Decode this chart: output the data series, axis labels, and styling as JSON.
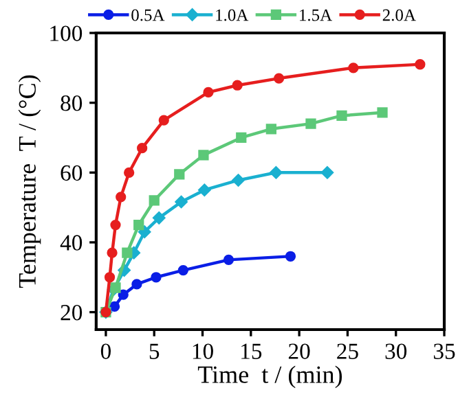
{
  "chart_data": {
    "type": "line",
    "xlabel": "Time  t / (min)",
    "ylabel": "Temperature  T / (°C)",
    "xlim": [
      -1,
      35
    ],
    "ylim": [
      15,
      100
    ],
    "xticks": [
      0,
      5,
      10,
      15,
      20,
      25,
      30,
      35
    ],
    "yticks": [
      20,
      40,
      60,
      80,
      100
    ],
    "grid": false,
    "legend": "top",
    "line_style": "solid",
    "series": [
      {
        "name": "0.5A",
        "color": "#0a1ee6",
        "marker": "circle",
        "x": [
          0,
          0.9,
          1.8,
          3.2,
          5.2,
          8,
          12.7,
          19.1
        ],
        "values": [
          20,
          21.6,
          25,
          28,
          30,
          32,
          35,
          36
        ]
      },
      {
        "name": "1.0A",
        "color": "#1ab0d0",
        "marker": "diamond",
        "x": [
          0,
          0.8,
          1.9,
          2.9,
          4,
          5.5,
          7.8,
          10.2,
          13.7,
          17.6,
          22.9
        ],
        "values": [
          20,
          26.5,
          32,
          37,
          43,
          47,
          51.6,
          55,
          57.8,
          60,
          60
        ]
      },
      {
        "name": "1.5A",
        "color": "#5cc878",
        "marker": "square",
        "x": [
          0,
          1,
          2.2,
          3.4,
          5,
          7.6,
          10.1,
          14,
          17.1,
          21.2,
          24.4,
          28.6
        ],
        "values": [
          20,
          27,
          37,
          45,
          52,
          59.5,
          65,
          70,
          72.5,
          74,
          76.3,
          77.2
        ]
      },
      {
        "name": "2.0A",
        "color": "#e61e1e",
        "marker": "circle",
        "x": [
          0,
          0.4,
          0.65,
          1,
          1.55,
          2.4,
          3.75,
          6,
          10.6,
          13.6,
          17.9,
          25.6,
          32.5
        ],
        "values": [
          20,
          30,
          37,
          45,
          53,
          60,
          67,
          75,
          83,
          85,
          87,
          90,
          91
        ]
      }
    ]
  }
}
